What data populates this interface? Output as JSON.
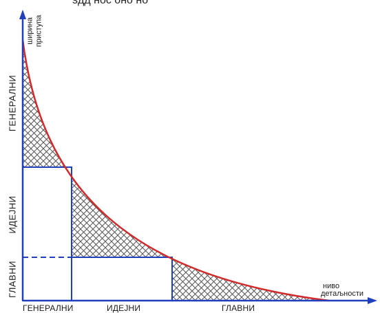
{
  "title_partial": "ѕдд   нос  оно   но  ",
  "y_axis": {
    "label_line1": "ширина",
    "label_line2": "приступа"
  },
  "x_axis": {
    "label_line1": "ниво",
    "label_line2": "детаљности"
  },
  "x_categories": [
    "ГЕНЕРАЛНИ",
    "ИДЕЈНИ",
    "ГЛАВНИ"
  ],
  "y_categories": [
    "ГЛАВНИ",
    "ИДЕЈНИ",
    "ГЕНЕРАЛНИ"
  ],
  "colors": {
    "axis": "#1f3fbf",
    "curve": "#d12a2a",
    "hatch": "#555555"
  }
}
